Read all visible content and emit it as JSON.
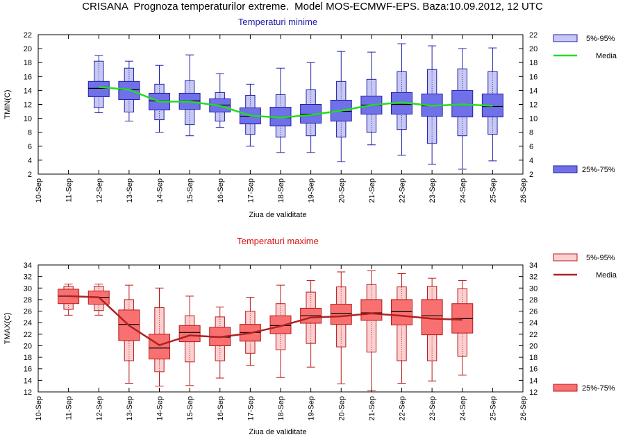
{
  "page_title": "CRISANA  Prognoza temperaturilor extreme.  Model MOS-ECMWF-EPS. Baza:10.09.2012, 12 UTC",
  "chart_data": [
    {
      "type": "box",
      "title": "Temperaturi minime",
      "title_color": "#1a1aaa",
      "ylabel": "TMIN(C)",
      "xlabel": "Ziua de validitate",
      "ylim": [
        2,
        22
      ],
      "yticks": [
        2,
        4,
        6,
        8,
        10,
        12,
        14,
        16,
        18,
        20,
        22
      ],
      "xticks": [
        "10-Sep",
        "11-Sep",
        "12-Sep",
        "13-Sep",
        "14-Sep",
        "15-Sep",
        "16-Sep",
        "17-Sep",
        "18-Sep",
        "19-Sep",
        "20-Sep",
        "21-Sep",
        "22-Sep",
        "23-Sep",
        "24-Sep",
        "25-Sep",
        "26-Sep"
      ],
      "colors": {
        "light": "#c8c8f4",
        "dark": "#7070e8",
        "stroke": "#2020a8",
        "mean": "#22dd22",
        "median": "#000000"
      },
      "legend": {
        "range_5_95": "5%-95%",
        "mean": "Media",
        "range_25_75": "25%-75%"
      },
      "legend_position": "right",
      "series": [
        {
          "day": "12-Sep",
          "whisker_low": 10.8,
          "p5": 11.5,
          "p25": 13.1,
          "median": 14.3,
          "p75": 15.3,
          "p95": 18.2,
          "whisker_high": 19.0,
          "mean": 14.5
        },
        {
          "day": "13-Sep",
          "whisker_low": 9.6,
          "p5": 10.9,
          "p25": 12.7,
          "median": 14.1,
          "p75": 15.3,
          "p95": 17.2,
          "whisker_high": 18.2,
          "mean": 14.1
        },
        {
          "day": "14-Sep",
          "whisker_low": 8.0,
          "p5": 9.8,
          "p25": 11.2,
          "median": 12.5,
          "p75": 13.6,
          "p95": 14.9,
          "whisker_high": 17.6,
          "mean": 12.4
        },
        {
          "day": "15-Sep",
          "whisker_low": 7.5,
          "p5": 9.1,
          "p25": 11.3,
          "median": 12.5,
          "p75": 13.6,
          "p95": 15.4,
          "whisker_high": 19.1,
          "mean": 12.4
        },
        {
          "day": "16-Sep",
          "whisker_low": 8.7,
          "p5": 9.6,
          "p25": 10.9,
          "median": 11.9,
          "p75": 12.8,
          "p95": 13.7,
          "whisker_high": 16.4,
          "mean": 11.8
        },
        {
          "day": "17-Sep",
          "whisker_low": 6.0,
          "p5": 7.7,
          "p25": 9.2,
          "median": 10.3,
          "p75": 11.5,
          "p95": 13.3,
          "whisker_high": 14.9,
          "mean": 10.4
        },
        {
          "day": "18-Sep",
          "whisker_low": 5.1,
          "p5": 7.3,
          "p25": 8.9,
          "median": 10.1,
          "p75": 11.6,
          "p95": 13.4,
          "whisker_high": 17.2,
          "mean": 10.1
        },
        {
          "day": "19-Sep",
          "whisker_low": 5.1,
          "p5": 7.5,
          "p25": 9.3,
          "median": 10.6,
          "p75": 12.0,
          "p95": 14.1,
          "whisker_high": 18.0,
          "mean": 10.5
        },
        {
          "day": "20-Sep",
          "whisker_low": 3.8,
          "p5": 7.3,
          "p25": 9.6,
          "median": 11.0,
          "p75": 12.6,
          "p95": 15.3,
          "whisker_high": 19.6,
          "mean": 11.1
        },
        {
          "day": "21-Sep",
          "whisker_low": 6.2,
          "p5": 8.0,
          "p25": 10.6,
          "median": 11.9,
          "p75": 13.2,
          "p95": 15.6,
          "whisker_high": 19.5,
          "mean": 11.9
        },
        {
          "day": "22-Sep",
          "whisker_low": 4.7,
          "p5": 8.4,
          "p25": 10.6,
          "median": 12.0,
          "p75": 13.7,
          "p95": 16.7,
          "whisker_high": 20.7,
          "mean": 12.3
        },
        {
          "day": "23-Sep",
          "whisker_low": 3.4,
          "p5": 6.4,
          "p25": 10.3,
          "median": 11.8,
          "p75": 13.5,
          "p95": 17.0,
          "whisker_high": 20.4,
          "mean": 11.8
        },
        {
          "day": "24-Sep",
          "whisker_low": 2.7,
          "p5": 7.5,
          "p25": 10.2,
          "median": 12.0,
          "p75": 14.0,
          "p95": 17.1,
          "whisker_high": 20.0,
          "mean": 12.0
        },
        {
          "day": "25-Sep",
          "whisker_low": 3.9,
          "p5": 7.7,
          "p25": 10.2,
          "median": 11.7,
          "p75": 13.5,
          "p95": 16.7,
          "whisker_high": 20.1,
          "mean": 11.8
        }
      ]
    },
    {
      "type": "box",
      "title": "Temperaturi maxime",
      "title_color": "#dd1111",
      "ylabel": "TMAX(C)",
      "xlabel": "Ziua de validitate",
      "ylim": [
        12,
        34
      ],
      "yticks": [
        12,
        14,
        16,
        18,
        20,
        22,
        24,
        26,
        28,
        30,
        32,
        34
      ],
      "xticks": [
        "10-Sep",
        "11-Sep",
        "12-Sep",
        "13-Sep",
        "14-Sep",
        "15-Sep",
        "16-Sep",
        "17-Sep",
        "18-Sep",
        "19-Sep",
        "20-Sep",
        "21-Sep",
        "22-Sep",
        "23-Sep",
        "24-Sep",
        "25-Sep",
        "26-Sep"
      ],
      "colors": {
        "light": "#fcd0d0",
        "dark": "#f87070",
        "stroke": "#b81818",
        "mean": "#b02020",
        "median": "#000000"
      },
      "legend": {
        "range_5_95": "5%-95%",
        "mean": "Media",
        "range_25_75": "25%-75%"
      },
      "legend_position": "right",
      "series": [
        {
          "day": "11-Sep",
          "whisker_low": 25.3,
          "p5": 26.3,
          "p25": 27.3,
          "median": 28.6,
          "p75": 29.8,
          "p95": 30.3,
          "whisker_high": 30.7,
          "mean": 28.6
        },
        {
          "day": "12-Sep",
          "whisker_low": 25.3,
          "p5": 26.1,
          "p25": 27.2,
          "median": 28.4,
          "p75": 29.5,
          "p95": 30.3,
          "whisker_high": 30.7,
          "mean": 28.4
        },
        {
          "day": "13-Sep",
          "whisker_low": 13.5,
          "p5": 17.4,
          "p25": 20.9,
          "median": 23.7,
          "p75": 26.2,
          "p95": 28.0,
          "whisker_high": 30.5,
          "mean": 23.5
        },
        {
          "day": "14-Sep",
          "whisker_low": 13.0,
          "p5": 15.5,
          "p25": 17.7,
          "median": 19.6,
          "p75": 22.0,
          "p95": 26.6,
          "whisker_high": 30.0,
          "mean": 20.1
        },
        {
          "day": "15-Sep",
          "whisker_low": 13.1,
          "p5": 17.2,
          "p25": 20.7,
          "median": 22.3,
          "p75": 23.5,
          "p95": 25.2,
          "whisker_high": 28.6,
          "mean": 21.8
        },
        {
          "day": "16-Sep",
          "whisker_low": 14.4,
          "p5": 17.4,
          "p25": 20.0,
          "median": 21.5,
          "p75": 23.2,
          "p95": 25.0,
          "whisker_high": 26.7,
          "mean": 21.5
        },
        {
          "day": "17-Sep",
          "whisker_low": 16.6,
          "p5": 18.7,
          "p25": 20.8,
          "median": 22.3,
          "p75": 23.7,
          "p95": 26.0,
          "whisker_high": 28.4,
          "mean": 22.2
        },
        {
          "day": "18-Sep",
          "whisker_low": 14.5,
          "p5": 19.3,
          "p25": 22.1,
          "median": 23.5,
          "p75": 25.2,
          "p95": 27.3,
          "whisker_high": 30.5,
          "mean": 23.4
        },
        {
          "day": "19-Sep",
          "whisker_low": 16.3,
          "p5": 20.4,
          "p25": 23.9,
          "median": 25.2,
          "p75": 26.5,
          "p95": 29.3,
          "whisker_high": 31.3,
          "mean": 24.9
        },
        {
          "day": "20-Sep",
          "whisker_low": 13.4,
          "p5": 19.8,
          "p25": 23.7,
          "median": 25.6,
          "p75": 27.2,
          "p95": 30.2,
          "whisker_high": 32.8,
          "mean": 25.1
        },
        {
          "day": "21-Sep",
          "whisker_low": 12.2,
          "p5": 18.9,
          "p25": 24.4,
          "median": 25.7,
          "p75": 28.0,
          "p95": 30.6,
          "whisker_high": 33.0,
          "mean": 25.6
        },
        {
          "day": "22-Sep",
          "whisker_low": 13.5,
          "p5": 17.4,
          "p25": 23.6,
          "median": 25.9,
          "p75": 28.0,
          "p95": 30.2,
          "whisker_high": 32.5,
          "mean": 25.2
        },
        {
          "day": "23-Sep",
          "whisker_low": 13.9,
          "p5": 17.4,
          "p25": 21.9,
          "median": 25.2,
          "p75": 28.0,
          "p95": 30.3,
          "whisker_high": 31.7,
          "mean": 24.7
        },
        {
          "day": "24-Sep",
          "whisker_low": 14.9,
          "p5": 18.2,
          "p25": 22.2,
          "median": 24.7,
          "p75": 27.3,
          "p95": 29.9,
          "whisker_high": 31.3,
          "mean": 24.5
        }
      ]
    }
  ]
}
